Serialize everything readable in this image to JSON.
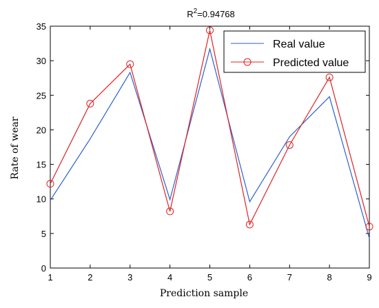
{
  "chart_data": {
    "type": "line",
    "title_base": "R",
    "title_sup": "2",
    "title_rest": "=0.94768",
    "xlabel": "Prediction sample",
    "ylabel": "Rate of wear",
    "x": [
      1,
      2,
      3,
      4,
      5,
      6,
      7,
      8,
      9
    ],
    "xlim": [
      1,
      9
    ],
    "ylim": [
      0,
      35
    ],
    "xticks": [
      "1",
      "2",
      "3",
      "4",
      "5",
      "6",
      "7",
      "8",
      "9"
    ],
    "yticks": [
      "0",
      "5",
      "10",
      "15",
      "20",
      "25",
      "30",
      "35"
    ],
    "legend_position": "top-right",
    "series": [
      {
        "name": "Real value",
        "values": [
          9.8,
          18.7,
          28.3,
          9.9,
          31.7,
          9.6,
          19.0,
          24.8,
          4.3
        ],
        "color": "#2b5fcf",
        "marker": "none"
      },
      {
        "name": "Predicted value",
        "values": [
          12.2,
          23.8,
          29.5,
          8.2,
          34.4,
          6.3,
          17.8,
          27.6,
          6.0
        ],
        "color": "#e02020",
        "marker": "circle"
      }
    ]
  }
}
